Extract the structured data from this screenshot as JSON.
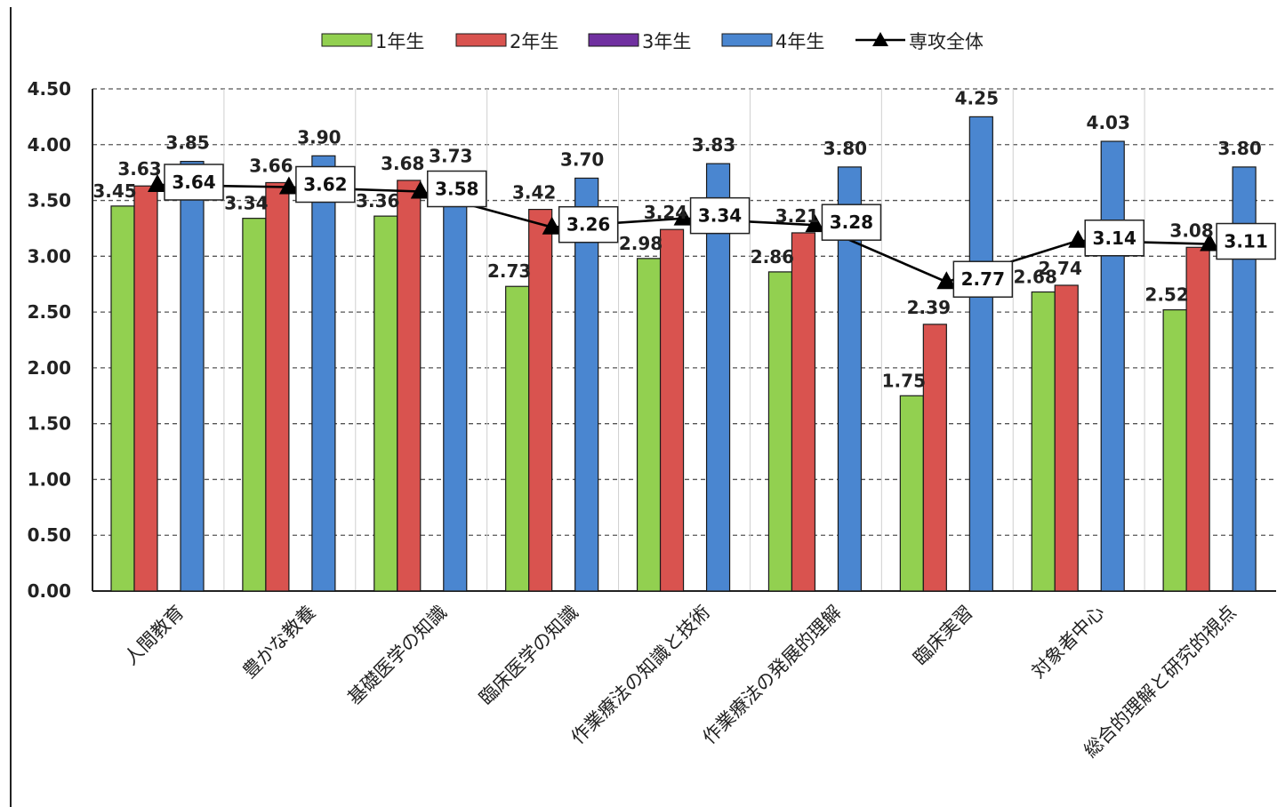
{
  "chart_data": {
    "type": "bar",
    "categories": [
      "人間教育",
      "豊かな教養",
      "基礎医学の知識",
      "臨床医学の知識",
      "作業療法の知識と技術",
      "作業療法の発展的理解",
      "臨床実習",
      "対象者中心",
      "総合的理解と研究的視点"
    ],
    "series": [
      {
        "name": "1年生",
        "color": "#92d050",
        "values": [
          3.45,
          3.34,
          3.36,
          2.73,
          2.98,
          2.86,
          1.75,
          2.68,
          2.52
        ]
      },
      {
        "name": "2年生",
        "color": "#d9534f",
        "values": [
          3.63,
          3.66,
          3.68,
          3.42,
          3.24,
          3.21,
          2.39,
          2.74,
          3.08
        ]
      },
      {
        "name": "3年生",
        "color": "#7030a0",
        "values": [
          null,
          null,
          null,
          null,
          null,
          null,
          null,
          null,
          null
        ]
      },
      {
        "name": "4年生",
        "color": "#4a86d0",
        "values": [
          3.85,
          3.9,
          3.73,
          3.7,
          3.83,
          3.8,
          4.25,
          4.03,
          3.8
        ]
      }
    ],
    "line": {
      "name": "専攻全体",
      "color": "#000000",
      "values": [
        3.64,
        3.62,
        3.58,
        3.26,
        3.34,
        3.28,
        2.77,
        3.14,
        3.11
      ]
    },
    "ylim": [
      0,
      4.5
    ],
    "yticks": [
      "0.00",
      "0.50",
      "1.00",
      "1.50",
      "2.00",
      "2.50",
      "3.00",
      "3.50",
      "4.00",
      "4.50"
    ],
    "grid": true,
    "legend_position": "top"
  }
}
